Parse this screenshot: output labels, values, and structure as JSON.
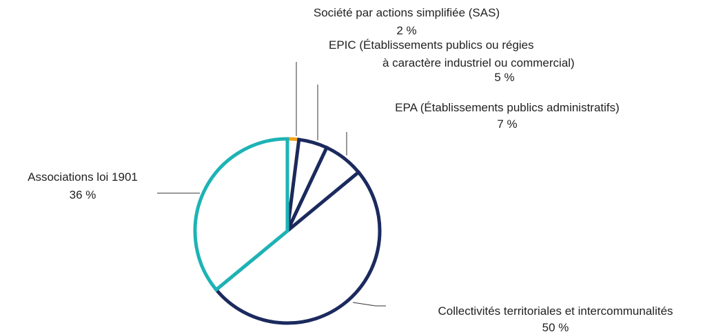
{
  "chart_data": {
    "type": "pie",
    "categories": [
      "Société par actions simplifiée (SAS)",
      "EPIC (Établissements publics ou régies\nà caractère industriel ou commercial)",
      "EPA (Établissements publics administratifs)",
      "Collectivités territoriales et intercommunalités",
      "Associations loi 1901"
    ],
    "values": [
      2,
      5,
      7,
      50,
      36
    ],
    "value_labels": [
      "2 %",
      "5 %",
      "7 %",
      "50 %",
      "36 %"
    ],
    "colors": [
      "#f3a21b",
      "#1b2a5e",
      "#1b2a5e",
      "#1b2a5e",
      "#1db3b5"
    ]
  }
}
